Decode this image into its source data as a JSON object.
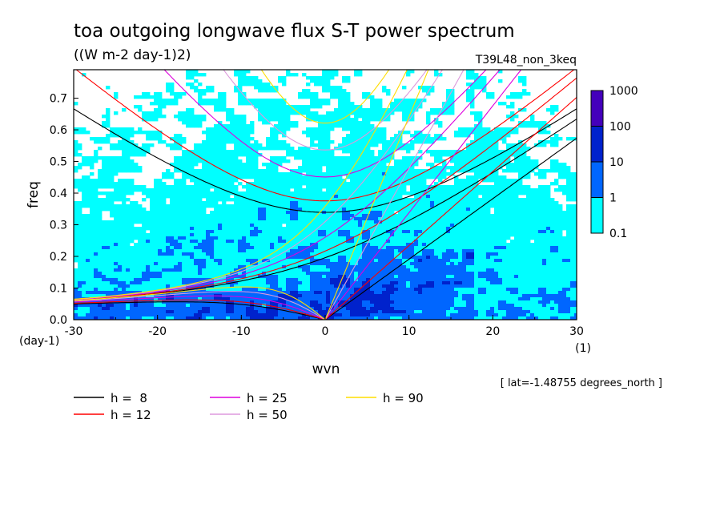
{
  "chart_data": {
    "type": "heatmap",
    "title": "toa outgoing longwave flux S-T power spectrum",
    "subtitle": "((W m-2 day-1)2)",
    "run_label": "T39L48_non_3keq",
    "xlabel": "wvn",
    "ylabel": "freq",
    "x_unit": "(1)",
    "y_unit": "(day-1)",
    "xlim": [
      -30,
      30
    ],
    "ylim": [
      0,
      0.79
    ],
    "x_ticks": [
      -30,
      -20,
      -10,
      0,
      10,
      20,
      30
    ],
    "x_tick_labels": [
      "-30",
      "-20",
      "-10",
      "0",
      "10",
      "20",
      "30"
    ],
    "y_ticks": [
      0.0,
      0.1,
      0.2,
      0.3,
      0.4,
      0.5,
      0.6,
      0.7
    ],
    "y_tick_labels": [
      "0.0",
      "0.1",
      "0.2",
      "0.3",
      "0.4",
      "0.5",
      "0.6",
      "0.7"
    ],
    "lat_note": "[ lat=-1.48755 degrees_north ]",
    "colorbar": {
      "levels": [
        0.1,
        1,
        10,
        100,
        1000
      ],
      "level_labels": [
        "0.1",
        "1",
        "10",
        "100",
        "1000"
      ],
      "colors": [
        "#00ffff",
        "#0066ff",
        "#0022cc",
        "#4400bb"
      ]
    },
    "dispersion_curves": [
      {
        "label": "h =  8",
        "h": 8,
        "color": "#000000"
      },
      {
        "label": "h = 12",
        "h": 12,
        "color": "#ff0000"
      },
      {
        "label": "h = 25",
        "h": 25,
        "color": "#dd00dd"
      },
      {
        "label": "h = 50",
        "h": 50,
        "color": "#dd99dd"
      },
      {
        "label": "h = 90",
        "h": 90,
        "color": "#ffdd00"
      }
    ],
    "curve_families": [
      "kelvin",
      "eig_n0",
      "ig_n1",
      "rossby_n1"
    ]
  }
}
